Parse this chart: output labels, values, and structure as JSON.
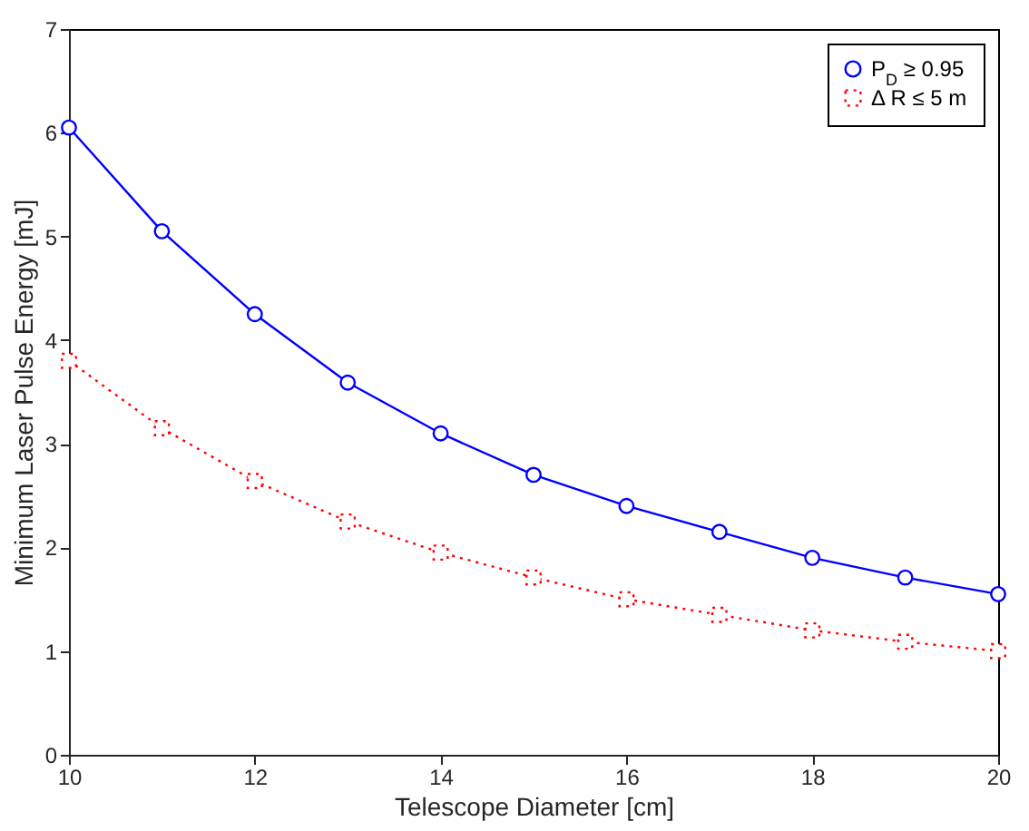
{
  "chart_data": {
    "type": "line",
    "xlabel": "Telescope Diameter [cm]",
    "ylabel": "Minimum Laser Pulse Energy [mJ]",
    "x": [
      10,
      11,
      12,
      13,
      14,
      15,
      16,
      17,
      18,
      19,
      20
    ],
    "series": [
      {
        "name": "P$_{D}$ ≥ 0.95",
        "color": "#0000ff",
        "marker": "circle",
        "line_style": "solid",
        "values": [
          6.05,
          5.05,
          4.25,
          3.59,
          3.1,
          2.7,
          2.4,
          2.15,
          1.9,
          1.71,
          1.55
        ]
      },
      {
        "name": "Δ R ≤ 5 m",
        "color": "#ff0000",
        "marker": "square",
        "line_style": "dotted",
        "values": [
          3.8,
          3.15,
          2.64,
          2.25,
          1.95,
          1.71,
          1.5,
          1.35,
          1.2,
          1.09,
          1.0
        ]
      }
    ],
    "xlim": [
      10,
      20
    ],
    "xticks": [
      10,
      12,
      14,
      16,
      18,
      20
    ],
    "ylim": [
      0,
      7
    ],
    "yticks": [
      0,
      1,
      2,
      3,
      4,
      5,
      6,
      7
    ],
    "grid": false,
    "legend": "top right"
  }
}
